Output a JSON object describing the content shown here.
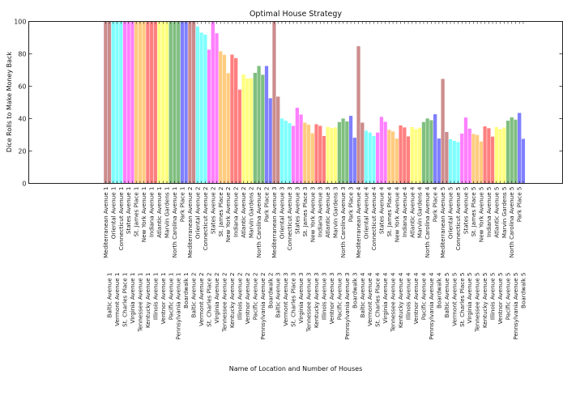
{
  "chart_data": {
    "type": "bar",
    "title": "Optimal House Strategy",
    "xlabel": "Name of Location and Number of Houses",
    "ylabel": "Dice Rolls to Make Money Back",
    "ylim": [
      0,
      100
    ],
    "yticks": [
      "0",
      "20",
      "40",
      "60",
      "80",
      "100"
    ],
    "grid": false,
    "color_groups": [
      {
        "color": "#cc8c8c",
        "count": 2
      },
      {
        "color": "#80ffff",
        "count": 3
      },
      {
        "color": "#ff80ff",
        "count": 3
      },
      {
        "color": "#ffcc80",
        "count": 3
      },
      {
        "color": "#ff8080",
        "count": 3
      },
      {
        "color": "#ffff80",
        "count": 3
      },
      {
        "color": "#80bf80",
        "count": 3
      },
      {
        "color": "#8080ff",
        "count": 2
      }
    ],
    "categories": [
      "Mediterranean Avenue 1",
      "Baltic Avenue 1",
      "Oriental Avenue 1",
      "Vermont Avenue 1",
      "Connecticut Avenue 1",
      "St. Charles Place 1",
      "States Avenue 1",
      "Virginia Avenue 1",
      "St. James Place 1",
      "Tennessee Avenue 1",
      "New York Avenue 1",
      "Kentucky Avenue 1",
      "Indiana Avenue 1",
      "Illinois Avenue 1",
      "Atlantic Avenue 1",
      "Ventnor Avenue 1",
      "Marvin Gardens 1",
      "Pacific Avenue 1",
      "North Carolina Avenue 1",
      "Pennsylvania Avenue 1",
      "Park Place 1",
      "Boardwalk 1",
      "Mediterranean Avenue 2",
      "Baltic Avenue 2",
      "Oriental Avenue 2",
      "Vermont Avenue 2",
      "Connecticut Avenue 2",
      "St. Charles Place 2",
      "States Avenue 2",
      "Virginia Avenue 2",
      "St. James Place 2",
      "Tennessee Avenue 2",
      "New York Avenue 2",
      "Kentucky Avenue 2",
      "Indiana Avenue 2",
      "Illinois Avenue 2",
      "Atlantic Avenue 2",
      "Ventnor Avenue 2",
      "Marvin Gardens 2",
      "Pacific Avenue 2",
      "North Carolina Avenue 2",
      "Pennsylvania Avenue 2",
      "Park Place 2",
      "Boardwalk 2",
      "Mediterranean Avenue 3",
      "Baltic Avenue 3",
      "Oriental Avenue 3",
      "Vermont Avenue 3",
      "Connecticut Avenue 3",
      "St. Charles Place 3",
      "States Avenue 3",
      "Virginia Avenue 3",
      "St. James Place 3",
      "Tennessee Avenue 3",
      "New York Avenue 3",
      "Kentucky Avenue 3",
      "Indiana Avenue 3",
      "Illinois Avenue 3",
      "Atlantic Avenue 3",
      "Ventnor Avenue 3",
      "Marvin Gardens 3",
      "Pacific Avenue 3",
      "North Carolina Avenue 3",
      "Pennsylvania Avenue 3",
      "Park Place 3",
      "Boardwalk 3",
      "Mediterranean Avenue 4",
      "Baltic Avenue 4",
      "Oriental Avenue 4",
      "Vermont Avenue 4",
      "Connecticut Avenue 4",
      "St. Charles Place 4",
      "States Avenue 4",
      "Virginia Avenue 4",
      "St. James Place 4",
      "Tennessee Avenue 4",
      "New York Avenue 4",
      "Kentucky Avenue 4",
      "Indiana Avenue 4",
      "Illinois Avenue 4",
      "Atlantic Avenue 4",
      "Ventnor Avenue 4",
      "Marvin Gardens 4",
      "Pacific Avenue 4",
      "North Carolina Avenue 4",
      "Pennsylvania Avenue 4",
      "Park Place 4",
      "Boardwalk 4",
      "Mediterranean Avenue 5",
      "Baltic Avenue 5",
      "Oriental Avenue 5",
      "Vermont Avenue 5",
      "Connecticut Avenue 5",
      "St. Charles Place 5",
      "States Avenue 5",
      "Virginia Avenue 5",
      "St. James Place 5",
      "Tennessee Avenue 5",
      "New York Avenue 5",
      "Kentucky Avenue 5",
      "Indiana Avenue 5",
      "Illinois Avenue 5",
      "Atlantic Avenue 5",
      "Ventnor Avenue 5",
      "Marvin Gardens 5",
      "Pacific Avenue 5",
      "North Carolina Avenue 5",
      "Pennsylvania Avenue 5",
      "Park Place 5",
      "Boardwalk 5"
    ],
    "values": [
      100,
      100,
      100,
      100,
      100,
      100,
      100,
      100,
      100,
      100,
      100,
      100,
      100,
      100,
      100,
      100,
      100,
      100,
      100,
      100,
      100,
      100,
      100,
      100,
      97,
      93.2,
      92,
      82.7,
      100,
      92.8,
      81.7,
      79.5,
      68.2,
      79.6,
      77.5,
      58,
      67.4,
      65,
      65,
      68.4,
      72.6,
      67.2,
      72.6,
      52.7,
      100,
      53.7,
      40.2,
      38.8,
      37.3,
      35.6,
      46.8,
      42.6,
      37.6,
      36.4,
      31.1,
      36.6,
      35.6,
      29.4,
      35,
      34.3,
      34.6,
      38,
      40.2,
      38.4,
      41.8,
      28.3,
      84.8,
      37.6,
      32.6,
      31.5,
      29.4,
      31.5,
      41.2,
      38.1,
      33.2,
      32.2,
      27.8,
      35.9,
      34.7,
      29.1,
      34.9,
      33.6,
      34.5,
      38,
      40.2,
      39.1,
      42.8,
      27.8,
      64.6,
      31.9,
      27.4,
      26.4,
      25.6,
      30.9,
      40.8,
      33.9,
      30.7,
      30,
      26,
      35.3,
      34.2,
      29,
      34.9,
      33.6,
      34.6,
      38.8,
      40.9,
      39.5,
      43.6,
      27.6
    ]
  }
}
